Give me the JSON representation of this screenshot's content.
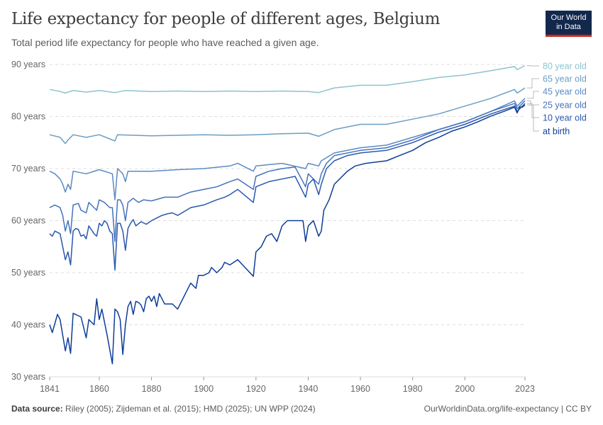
{
  "title": "Life expectancy for people of different ages, Belgium",
  "subtitle": "Total period life expectancy for people who have reached a given age.",
  "logo": {
    "line1": "Our World",
    "line2": "in Data"
  },
  "footer": {
    "source_label": "Data source:",
    "source_text": "Riley (2005); Zijdeman et al. (2015); HMD (2025); UN WPP (2024)",
    "link": "OurWorldinData.org/life-expectancy | CC BY"
  },
  "chart_data": {
    "type": "line",
    "title": "Life expectancy for people of different ages, Belgium",
    "xlim": [
      1841,
      2023
    ],
    "ylim": [
      30,
      90
    ],
    "yticks": [
      30,
      40,
      50,
      60,
      70,
      80,
      90
    ],
    "ytick_labels": [
      "30 years",
      "40 years",
      "50 years",
      "60 years",
      "70 years",
      "80 years",
      "90 years"
    ],
    "xticks": [
      1841,
      1860,
      1880,
      1900,
      1920,
      1940,
      1960,
      1980,
      2000,
      2023
    ],
    "grid": "horizontal dashed",
    "legend": "right, inline labels",
    "series": [
      {
        "name": "80 year old",
        "color": "#8cc3cf",
        "points": [
          [
            1841,
            85.2
          ],
          [
            1845,
            84.8
          ],
          [
            1847,
            84.5
          ],
          [
            1850,
            85
          ],
          [
            1855,
            84.7
          ],
          [
            1860,
            85
          ],
          [
            1866,
            84.6
          ],
          [
            1870,
            85
          ],
          [
            1880,
            84.8
          ],
          [
            1890,
            84.9
          ],
          [
            1900,
            84.8
          ],
          [
            1910,
            84.9
          ],
          [
            1920,
            84.8
          ],
          [
            1930,
            84.9
          ],
          [
            1940,
            84.8
          ],
          [
            1944,
            84.6
          ],
          [
            1950,
            85.5
          ],
          [
            1960,
            86
          ],
          [
            1970,
            86
          ],
          [
            1980,
            86.7
          ],
          [
            1990,
            87.5
          ],
          [
            2000,
            88
          ],
          [
            2010,
            88.8
          ],
          [
            2019,
            89.6
          ],
          [
            2020,
            89
          ],
          [
            2023,
            89.8
          ]
        ]
      },
      {
        "name": "65 year old",
        "color": "#6b9ec2",
        "points": [
          [
            1841,
            76.5
          ],
          [
            1845,
            76
          ],
          [
            1847,
            74.8
          ],
          [
            1848,
            75.5
          ],
          [
            1850,
            76.5
          ],
          [
            1855,
            76
          ],
          [
            1860,
            76.5
          ],
          [
            1866,
            75.3
          ],
          [
            1867,
            76.5
          ],
          [
            1880,
            76.3
          ],
          [
            1890,
            76.4
          ],
          [
            1900,
            76.5
          ],
          [
            1910,
            76.4
          ],
          [
            1920,
            76.5
          ],
          [
            1930,
            76.7
          ],
          [
            1940,
            76.8
          ],
          [
            1944,
            76.2
          ],
          [
            1950,
            77.5
          ],
          [
            1960,
            78.5
          ],
          [
            1970,
            78.5
          ],
          [
            1980,
            79.5
          ],
          [
            1990,
            80.5
          ],
          [
            2000,
            82
          ],
          [
            2010,
            83.5
          ],
          [
            2019,
            85.2
          ],
          [
            2020,
            84.5
          ],
          [
            2023,
            85.5
          ]
        ]
      },
      {
        "name": "45 year old",
        "color": "#5b8ac6",
        "points": [
          [
            1841,
            69.5
          ],
          [
            1843,
            69
          ],
          [
            1845,
            68
          ],
          [
            1846,
            67
          ],
          [
            1847,
            65.5
          ],
          [
            1848,
            67
          ],
          [
            1849,
            66
          ],
          [
            1850,
            69.5
          ],
          [
            1855,
            69
          ],
          [
            1860,
            69.8
          ],
          [
            1865,
            69
          ],
          [
            1866,
            64
          ],
          [
            1867,
            70
          ],
          [
            1869,
            69
          ],
          [
            1870,
            67.5
          ],
          [
            1871,
            69.5
          ],
          [
            1880,
            69.5
          ],
          [
            1890,
            69.8
          ],
          [
            1900,
            70
          ],
          [
            1910,
            70.5
          ],
          [
            1913,
            71
          ],
          [
            1919,
            69.5
          ],
          [
            1920,
            70.5
          ],
          [
            1930,
            71
          ],
          [
            1939,
            70
          ],
          [
            1940,
            71
          ],
          [
            1944,
            70.5
          ],
          [
            1945,
            71.5
          ],
          [
            1950,
            73
          ],
          [
            1960,
            74
          ],
          [
            1970,
            74.5
          ],
          [
            1980,
            76
          ],
          [
            1990,
            77.5
          ],
          [
            2000,
            79
          ],
          [
            2010,
            81
          ],
          [
            2019,
            83
          ],
          [
            2020,
            82
          ],
          [
            2023,
            83.5
          ]
        ]
      },
      {
        "name": "25 year old",
        "color": "#4572bd",
        "points": [
          [
            1841,
            62.5
          ],
          [
            1843,
            63
          ],
          [
            1845,
            62.5
          ],
          [
            1846,
            61
          ],
          [
            1847,
            58
          ],
          [
            1848,
            60
          ],
          [
            1849,
            57.5
          ],
          [
            1850,
            63
          ],
          [
            1852,
            63.3
          ],
          [
            1853,
            62
          ],
          [
            1855,
            61.5
          ],
          [
            1856,
            63.5
          ],
          [
            1858,
            62.5
          ],
          [
            1859,
            62
          ],
          [
            1860,
            64
          ],
          [
            1862,
            63.5
          ],
          [
            1864,
            62.5
          ],
          [
            1865,
            62.5
          ],
          [
            1866,
            56
          ],
          [
            1867,
            64
          ],
          [
            1868,
            64
          ],
          [
            1869,
            63
          ],
          [
            1870,
            60
          ],
          [
            1871,
            63.5
          ],
          [
            1873,
            64.3
          ],
          [
            1875,
            63.5
          ],
          [
            1877,
            64
          ],
          [
            1880,
            63.8
          ],
          [
            1885,
            64.5
          ],
          [
            1890,
            64.5
          ],
          [
            1895,
            65.5
          ],
          [
            1900,
            66
          ],
          [
            1905,
            66.5
          ],
          [
            1910,
            67.5
          ],
          [
            1913,
            68
          ],
          [
            1919,
            66
          ],
          [
            1920,
            68.5
          ],
          [
            1925,
            69.5
          ],
          [
            1930,
            70
          ],
          [
            1935,
            70.3
          ],
          [
            1939,
            66.5
          ],
          [
            1940,
            69
          ],
          [
            1944,
            67
          ],
          [
            1945,
            69
          ],
          [
            1947,
            71
          ],
          [
            1950,
            72.5
          ],
          [
            1960,
            73.5
          ],
          [
            1970,
            74
          ],
          [
            1980,
            75.5
          ],
          [
            1990,
            77.5
          ],
          [
            2000,
            79
          ],
          [
            2010,
            81
          ],
          [
            2019,
            82.5
          ],
          [
            2020,
            81.5
          ],
          [
            2023,
            83
          ]
        ]
      },
      {
        "name": "10 year old",
        "color": "#2a58ad",
        "points": [
          [
            1841,
            57.5
          ],
          [
            1842,
            57
          ],
          [
            1843,
            58
          ],
          [
            1845,
            57.5
          ],
          [
            1846,
            55
          ],
          [
            1847,
            52.5
          ],
          [
            1848,
            54
          ],
          [
            1849,
            51.5
          ],
          [
            1850,
            58
          ],
          [
            1851,
            58.5
          ],
          [
            1852,
            58.3
          ],
          [
            1853,
            57
          ],
          [
            1854,
            57.3
          ],
          [
            1855,
            56.5
          ],
          [
            1856,
            59
          ],
          [
            1858,
            57.5
          ],
          [
            1859,
            57
          ],
          [
            1860,
            59.5
          ],
          [
            1861,
            59
          ],
          [
            1862,
            60
          ],
          [
            1863,
            59.5
          ],
          [
            1864,
            58
          ],
          [
            1865,
            57.5
          ],
          [
            1866,
            50.5
          ],
          [
            1867,
            59.5
          ],
          [
            1868,
            59.5
          ],
          [
            1869,
            58
          ],
          [
            1870,
            54.3
          ],
          [
            1871,
            58.5
          ],
          [
            1872,
            59.5
          ],
          [
            1873,
            60.2
          ],
          [
            1874,
            59
          ],
          [
            1876,
            59.8
          ],
          [
            1878,
            59.3
          ],
          [
            1880,
            60
          ],
          [
            1882,
            60.5
          ],
          [
            1884,
            61
          ],
          [
            1886,
            61.3
          ],
          [
            1888,
            61.5
          ],
          [
            1890,
            61
          ],
          [
            1895,
            62.5
          ],
          [
            1900,
            63
          ],
          [
            1905,
            64
          ],
          [
            1908,
            64.5
          ],
          [
            1910,
            65
          ],
          [
            1913,
            66
          ],
          [
            1919,
            63.5
          ],
          [
            1920,
            66.5
          ],
          [
            1925,
            67.5
          ],
          [
            1930,
            68
          ],
          [
            1935,
            68.5
          ],
          [
            1939,
            64.5
          ],
          [
            1940,
            67
          ],
          [
            1942,
            68
          ],
          [
            1944,
            65
          ],
          [
            1945,
            67
          ],
          [
            1947,
            70
          ],
          [
            1950,
            71.5
          ],
          [
            1955,
            72.5
          ],
          [
            1960,
            73
          ],
          [
            1970,
            73.5
          ],
          [
            1980,
            75
          ],
          [
            1990,
            77
          ],
          [
            2000,
            78.5
          ],
          [
            2010,
            80.5
          ],
          [
            2019,
            82
          ],
          [
            2020,
            81
          ],
          [
            2023,
            82.5
          ]
        ]
      },
      {
        "name": "at birth",
        "color": "#0e3d98",
        "points": [
          [
            1841,
            40
          ],
          [
            1842,
            38.5
          ],
          [
            1844,
            42
          ],
          [
            1845,
            41
          ],
          [
            1847,
            35
          ],
          [
            1848,
            37.5
          ],
          [
            1849,
            34.5
          ],
          [
            1850,
            42.2
          ],
          [
            1853,
            41.5
          ],
          [
            1855,
            37.5
          ],
          [
            1856,
            41
          ],
          [
            1858,
            40
          ],
          [
            1859,
            45
          ],
          [
            1860,
            41
          ],
          [
            1861,
            43
          ],
          [
            1863,
            38
          ],
          [
            1865,
            32.5
          ],
          [
            1866,
            43
          ],
          [
            1867,
            42.5
          ],
          [
            1868,
            41
          ],
          [
            1869,
            34.3
          ],
          [
            1870,
            40
          ],
          [
            1871,
            43.5
          ],
          [
            1872,
            44.5
          ],
          [
            1873,
            42
          ],
          [
            1874,
            44.5
          ],
          [
            1875,
            44.3
          ],
          [
            1876,
            43.8
          ],
          [
            1877,
            42.5
          ],
          [
            1878,
            45
          ],
          [
            1879,
            45.5
          ],
          [
            1880,
            44.5
          ],
          [
            1881,
            45.5
          ],
          [
            1882,
            43.5
          ],
          [
            1883,
            46
          ],
          [
            1885,
            44
          ],
          [
            1888,
            44
          ],
          [
            1890,
            43
          ],
          [
            1893,
            46
          ],
          [
            1895,
            48
          ],
          [
            1897,
            47
          ],
          [
            1898,
            49.5
          ],
          [
            1900,
            49.5
          ],
          [
            1902,
            50
          ],
          [
            1903,
            51
          ],
          [
            1905,
            50
          ],
          [
            1907,
            51
          ],
          [
            1908,
            52
          ],
          [
            1910,
            51.5
          ],
          [
            1913,
            52.5
          ],
          [
            1919,
            49.3
          ],
          [
            1920,
            54
          ],
          [
            1922,
            55
          ],
          [
            1924,
            57
          ],
          [
            1926,
            57.5
          ],
          [
            1928,
            56
          ],
          [
            1929,
            57.5
          ],
          [
            1930,
            59
          ],
          [
            1932,
            60
          ],
          [
            1936,
            60
          ],
          [
            1938,
            60
          ],
          [
            1939,
            56
          ],
          [
            1940,
            59
          ],
          [
            1941,
            59.5
          ],
          [
            1942,
            60
          ],
          [
            1944,
            57
          ],
          [
            1945,
            58
          ],
          [
            1946,
            62
          ],
          [
            1948,
            64
          ],
          [
            1950,
            67
          ],
          [
            1955,
            69.5
          ],
          [
            1958,
            70.5
          ],
          [
            1962,
            71
          ],
          [
            1970,
            71.5
          ],
          [
            1975,
            72.5
          ],
          [
            1980,
            73.5
          ],
          [
            1985,
            75
          ],
          [
            1990,
            76
          ],
          [
            1995,
            77.2
          ],
          [
            2000,
            78
          ],
          [
            2005,
            79
          ],
          [
            2010,
            80.1
          ],
          [
            2015,
            81
          ],
          [
            2019,
            81.8
          ],
          [
            2020,
            80.7
          ],
          [
            2021,
            81.8
          ],
          [
            2022,
            81.8
          ],
          [
            2023,
            82.2
          ]
        ]
      }
    ]
  }
}
